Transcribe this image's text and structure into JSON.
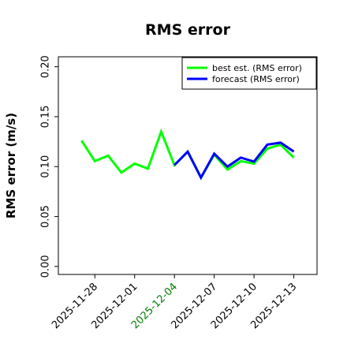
{
  "chart_data": {
    "type": "line",
    "title": "RMS error",
    "y_label": "RMS error (m/s)",
    "x": [
      "2025-11-27",
      "2025-11-28",
      "2025-11-29",
      "2025-11-30",
      "2025-12-01",
      "2025-12-02",
      "2025-12-03",
      "2025-12-04",
      "2025-12-05",
      "2025-12-06",
      "2025-12-07",
      "2025-12-08",
      "2025-12-09",
      "2025-12-10",
      "2025-12-11",
      "2025-12-12",
      "2025-12-13"
    ],
    "series": [
      {
        "name": "best est. (RMS error)",
        "color": "#00ff00",
        "values": [
          0.126,
          0.1055,
          0.111,
          0.094,
          0.103,
          0.098,
          0.135,
          0.1015,
          0.115,
          0.089,
          0.112,
          0.097,
          0.1055,
          0.103,
          0.118,
          0.122,
          0.109
        ]
      },
      {
        "name": "forecast (RMS error)",
        "color": "#0000ff",
        "values": [
          null,
          null,
          null,
          null,
          null,
          null,
          null,
          0.1015,
          0.115,
          0.089,
          0.113,
          0.1,
          0.109,
          0.105,
          0.122,
          0.124,
          0.115
        ]
      }
    ],
    "xlim": [
      "2025-11-25T06:00",
      "2025-12-14T18:00"
    ],
    "xticks": [
      "2025-11-28",
      "2025-12-01",
      "2025-12-04",
      "2025-12-07",
      "2025-12-10",
      "2025-12-13"
    ],
    "highlight_xtick": 2,
    "highlight_color": "green",
    "ylim": [
      -0.008,
      0.21
    ],
    "yticks": [
      {
        "value": 0,
        "label": "0.00"
      },
      {
        "value": 0.05,
        "label": "0.05"
      },
      {
        "value": 0.1,
        "label": "0.10"
      },
      {
        "value": 0.15,
        "label": "0.15"
      },
      {
        "value": 0.2,
        "label": "0.20"
      }
    ],
    "legend": "upper right",
    "grid": false
  }
}
